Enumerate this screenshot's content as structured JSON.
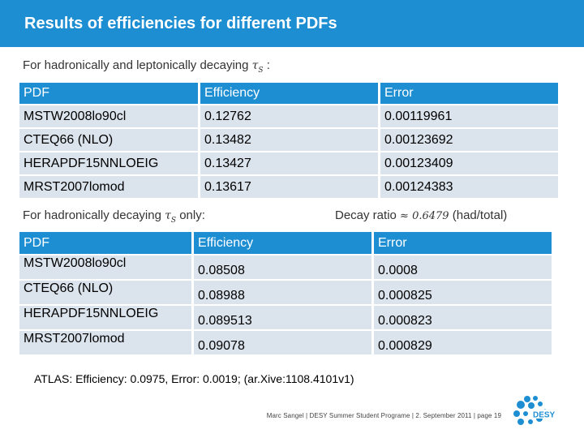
{
  "header": {
    "title": "Results of efficiencies for different PDFs"
  },
  "section1": {
    "caption_prefix": "For hadronically and leptonically decaying",
    "tau": "τ",
    "tau_sub": "S",
    "caption_suffix": " :"
  },
  "table1": {
    "headers": [
      "PDF",
      "Efficiency",
      "Error"
    ],
    "rows": [
      [
        "MSTW2008lo90cl",
        "0.12762",
        "0.00119961"
      ],
      [
        "CTEQ66 (NLO)",
        "0.13482",
        "0.00123692"
      ],
      [
        "HERAPDF15NNLOEIG",
        "0.13427",
        "0.00123409"
      ],
      [
        "MRST2007lomod",
        "0.13617",
        "0.00124383"
      ]
    ]
  },
  "section2": {
    "caption_prefix": "For hadronically decaying",
    "tau": "τ",
    "tau_sub": "S",
    "caption_suffix": " only:",
    "ratio_label": "Decay ratio",
    "ratio_value": "≈ 0.6479",
    "ratio_unit": "(had/total)"
  },
  "table2": {
    "headers": [
      "PDF",
      "Efficiency",
      "Error"
    ],
    "rows": [
      [
        "MSTW2008lo90cl",
        "0.08508",
        "0.0008"
      ],
      [
        "CTEQ66 (NLO)",
        "0.08988",
        "0.000825"
      ],
      [
        "HERAPDF15NNLOEIG",
        "0.089513",
        "0.000823"
      ],
      [
        "MRST2007lomod",
        "0.09078",
        "0.000829"
      ]
    ]
  },
  "atlas_note": "ATLAS: Efficiency: 0.0975, Error: 0.0019; (ar.Xive:1108.4101v1)",
  "footer": "Marc Sangel | DESY Summer Student Programe | 2. September 2011 | page 19",
  "logo": {
    "text": "DESY",
    "color": "#1e8ed3"
  },
  "colors": {
    "accent": "#1e8ed3",
    "row_bg": "#dbe3ec"
  }
}
